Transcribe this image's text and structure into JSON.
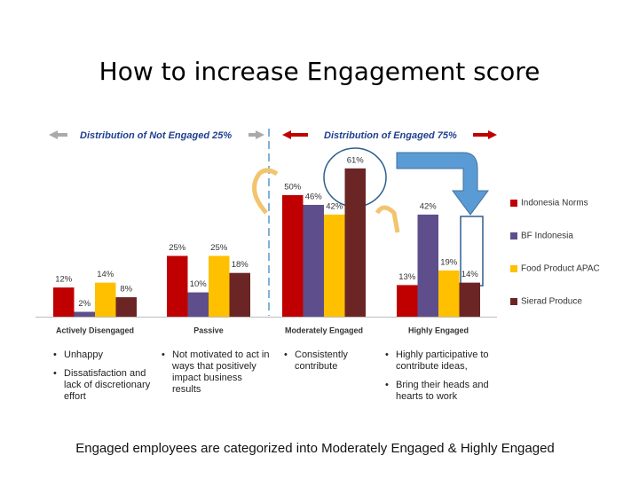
{
  "chart_data": {
    "type": "bar",
    "title": "How to increase Engagement score",
    "left_header": "Distribution of Not Engaged 25%",
    "right_header": "Distribution of Engaged 75%",
    "categories": [
      "Actively Disengaged",
      "Passive",
      "Moderately Engaged",
      "Highly Engaged"
    ],
    "series": [
      {
        "name": "Indonesia Norms",
        "color": "#c00000",
        "values": [
          12,
          25,
          50,
          13
        ],
        "value_labels": [
          "12%",
          "25%",
          "50%",
          "13%"
        ]
      },
      {
        "name": "BF Indonesia",
        "color": "#5e4f8c",
        "values": [
          2,
          10,
          46,
          42
        ],
        "value_labels": [
          "2%",
          "10%",
          "46%",
          "42%"
        ]
      },
      {
        "name": "Food Product APAC",
        "color": "#ffc000",
        "values": [
          14,
          25,
          42,
          19
        ],
        "value_labels": [
          "14%",
          "25%",
          "42%",
          "19%"
        ]
      },
      {
        "name": "Sierad Produce",
        "color": "#6b2525",
        "values": [
          8,
          18,
          61,
          14
        ],
        "value_labels": [
          "8%",
          "18%",
          "61%",
          "14%"
        ]
      }
    ],
    "legend": "right",
    "bullets": [
      [
        "Unhappy",
        "Dissatisfaction and lack of discretionary effort"
      ],
      [
        "Not motivated to act in ways that positively impact business results"
      ],
      [
        "Consistently contribute"
      ],
      [
        "Highly participative to contribute ideas,",
        "Bring their heads and hearts to work"
      ]
    ],
    "caption": "Engaged employees are categorized into Moderately Engaged & Highly Engaged"
  }
}
